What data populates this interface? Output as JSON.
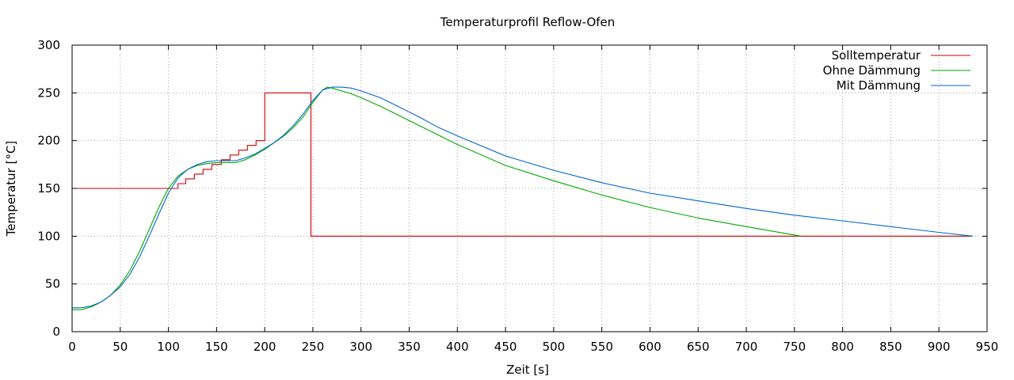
{
  "chart_data": {
    "type": "line",
    "title": "Temperaturprofil Reflow-Ofen",
    "xlabel": "Zeit [s]",
    "ylabel": "Temperatur [°C]",
    "xlim": [
      0,
      950
    ],
    "ylim": [
      0,
      300
    ],
    "xticks": [
      0,
      50,
      100,
      150,
      200,
      250,
      300,
      350,
      400,
      450,
      500,
      550,
      600,
      650,
      700,
      750,
      800,
      850,
      900,
      950
    ],
    "yticks": [
      0,
      50,
      100,
      150,
      200,
      250,
      300
    ],
    "grid": true,
    "legend_position": "top-right",
    "series": [
      {
        "name": "Solltemperatur",
        "color": "#cc0000",
        "points": [
          [
            0,
            150
          ],
          [
            110,
            150
          ],
          [
            110,
            155
          ],
          [
            118,
            155
          ],
          [
            118,
            160
          ],
          [
            127,
            160
          ],
          [
            127,
            165
          ],
          [
            136,
            165
          ],
          [
            136,
            170
          ],
          [
            145,
            170
          ],
          [
            145,
            175
          ],
          [
            155,
            175
          ],
          [
            155,
            180
          ],
          [
            164,
            180
          ],
          [
            164,
            185
          ],
          [
            173,
            185
          ],
          [
            173,
            190
          ],
          [
            182,
            190
          ],
          [
            182,
            195
          ],
          [
            191,
            195
          ],
          [
            191,
            200
          ],
          [
            200,
            200
          ],
          [
            200,
            250
          ],
          [
            248,
            250
          ],
          [
            248,
            100
          ],
          [
            935,
            100
          ]
        ]
      },
      {
        "name": "Ohne Dämmung",
        "color": "#00aa00",
        "points": [
          [
            0,
            23
          ],
          [
            10,
            23
          ],
          [
            20,
            26
          ],
          [
            30,
            31
          ],
          [
            40,
            38
          ],
          [
            50,
            49
          ],
          [
            60,
            64
          ],
          [
            70,
            84
          ],
          [
            80,
            107
          ],
          [
            90,
            130
          ],
          [
            100,
            150
          ],
          [
            110,
            163
          ],
          [
            120,
            170
          ],
          [
            130,
            174
          ],
          [
            140,
            176
          ],
          [
            150,
            177
          ],
          [
            160,
            177
          ],
          [
            170,
            177
          ],
          [
            180,
            180
          ],
          [
            190,
            185
          ],
          [
            200,
            191
          ],
          [
            210,
            198
          ],
          [
            220,
            205
          ],
          [
            230,
            214
          ],
          [
            240,
            225
          ],
          [
            250,
            240
          ],
          [
            260,
            253
          ],
          [
            265,
            256
          ],
          [
            270,
            255
          ],
          [
            280,
            252
          ],
          [
            290,
            249
          ],
          [
            300,
            245
          ],
          [
            320,
            236
          ],
          [
            340,
            226
          ],
          [
            360,
            216
          ],
          [
            380,
            206
          ],
          [
            400,
            196
          ],
          [
            450,
            174
          ],
          [
            500,
            158
          ],
          [
            550,
            143
          ],
          [
            600,
            130
          ],
          [
            650,
            119
          ],
          [
            700,
            110
          ],
          [
            757,
            100
          ]
        ]
      },
      {
        "name": "Mit Dämmung",
        "color": "#0066cc",
        "points": [
          [
            0,
            25
          ],
          [
            10,
            25
          ],
          [
            20,
            27
          ],
          [
            30,
            31
          ],
          [
            40,
            38
          ],
          [
            50,
            47
          ],
          [
            60,
            60
          ],
          [
            70,
            78
          ],
          [
            80,
            100
          ],
          [
            90,
            123
          ],
          [
            100,
            145
          ],
          [
            110,
            161
          ],
          [
            120,
            170
          ],
          [
            130,
            175
          ],
          [
            140,
            178
          ],
          [
            150,
            179
          ],
          [
            160,
            179
          ],
          [
            170,
            179
          ],
          [
            180,
            182
          ],
          [
            190,
            186
          ],
          [
            200,
            192
          ],
          [
            210,
            198
          ],
          [
            220,
            206
          ],
          [
            230,
            216
          ],
          [
            240,
            228
          ],
          [
            250,
            242
          ],
          [
            260,
            253
          ],
          [
            270,
            256
          ],
          [
            280,
            256
          ],
          [
            290,
            255
          ],
          [
            300,
            252
          ],
          [
            320,
            245
          ],
          [
            340,
            235
          ],
          [
            360,
            225
          ],
          [
            380,
            214
          ],
          [
            400,
            205
          ],
          [
            450,
            184
          ],
          [
            500,
            169
          ],
          [
            550,
            156
          ],
          [
            600,
            145
          ],
          [
            650,
            137
          ],
          [
            700,
            129
          ],
          [
            750,
            122
          ],
          [
            800,
            116
          ],
          [
            850,
            110
          ],
          [
            900,
            104
          ],
          [
            935,
            100
          ]
        ]
      }
    ]
  }
}
